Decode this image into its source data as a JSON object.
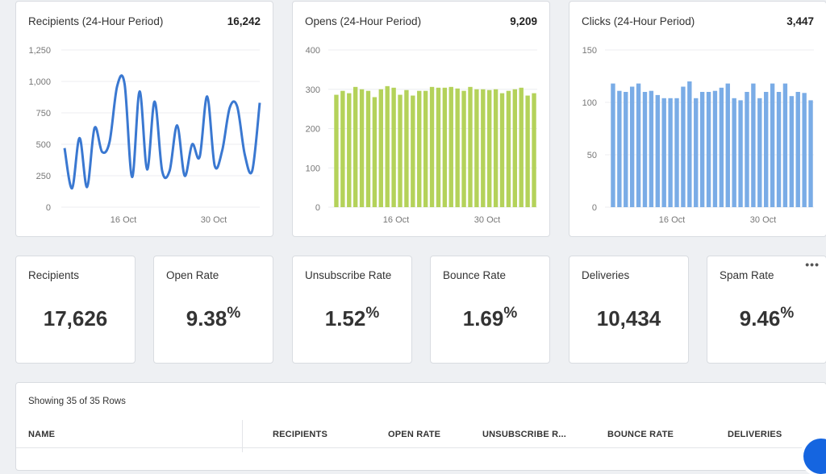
{
  "colors": {
    "line": "#3a78d1",
    "opens_bar": "#b4d25a",
    "clicks_bar": "#7aace6",
    "fab": "#1565e0"
  },
  "charts": {
    "recipients": {
      "title": "Recipients (24-Hour Period)",
      "total": "16,242"
    },
    "opens": {
      "title": "Opens (24-Hour Period)",
      "total": "9,209"
    },
    "clicks": {
      "title": "Clicks (24-Hour Period)",
      "total": "3,447"
    }
  },
  "chart_data": [
    {
      "type": "line",
      "title": "Recipients (24-Hour Period)",
      "ylim": [
        0,
        1250
      ],
      "yticks": [
        "1,250",
        "1,000",
        "750",
        "500",
        "250",
        "0"
      ],
      "xticks": [
        "16 Oct",
        "30 Oct"
      ],
      "series": [
        {
          "values": [
            470,
            150,
            550,
            160,
            630,
            440,
            520,
            960,
            980,
            240,
            920,
            300,
            840,
            290,
            290,
            650,
            250,
            500,
            400,
            880,
            330,
            450,
            790,
            800,
            420,
            290,
            830
          ]
        }
      ]
    },
    {
      "type": "bar",
      "title": "Opens (24-Hour Period)",
      "ylim": [
        0,
        400
      ],
      "yticks": [
        "400",
        "300",
        "200",
        "100",
        "0"
      ],
      "xticks": [
        "16 Oct",
        "30 Oct"
      ],
      "series": [
        {
          "values": [
            286,
            296,
            290,
            306,
            300,
            296,
            280,
            300,
            308,
            304,
            286,
            298,
            284,
            296,
            296,
            306,
            304,
            304,
            306,
            302,
            296,
            306,
            300,
            300,
            298,
            300,
            290,
            296,
            300,
            304,
            284,
            290
          ]
        }
      ]
    },
    {
      "type": "bar",
      "title": "Clicks (24-Hour Period)",
      "ylim": [
        0,
        150
      ],
      "yticks": [
        "150",
        "100",
        "50",
        "0"
      ],
      "xticks": [
        "16 Oct",
        "30 Oct"
      ],
      "series": [
        {
          "values": [
            118,
            111,
            110,
            115,
            118,
            110,
            111,
            107,
            104,
            104,
            104,
            115,
            120,
            104,
            110,
            110,
            111,
            114,
            118,
            104,
            102,
            110,
            118,
            104,
            110,
            118,
            110,
            118,
            106,
            110,
            109,
            102
          ]
        }
      ]
    }
  ],
  "kpis": [
    {
      "label": "Recipients",
      "value": "17,626"
    },
    {
      "label": "Open Rate",
      "value": "9.38",
      "suffix": "%"
    },
    {
      "label": "Unsubscribe Rate",
      "value": "1.52",
      "suffix": "%"
    },
    {
      "label": "Bounce Rate",
      "value": "1.69",
      "suffix": "%"
    },
    {
      "label": "Deliveries",
      "value": "10,434"
    },
    {
      "label": "Spam Rate",
      "value": "9.46",
      "suffix": "%"
    }
  ],
  "more_menu": "•••",
  "table": {
    "showing": "Showing 35 of 35 Rows",
    "columns": [
      "NAME",
      "RECIPIENTS",
      "OPEN RATE",
      "UNSUBSCRIBE R...",
      "BOUNCE RATE",
      "DELIVERIES"
    ]
  }
}
